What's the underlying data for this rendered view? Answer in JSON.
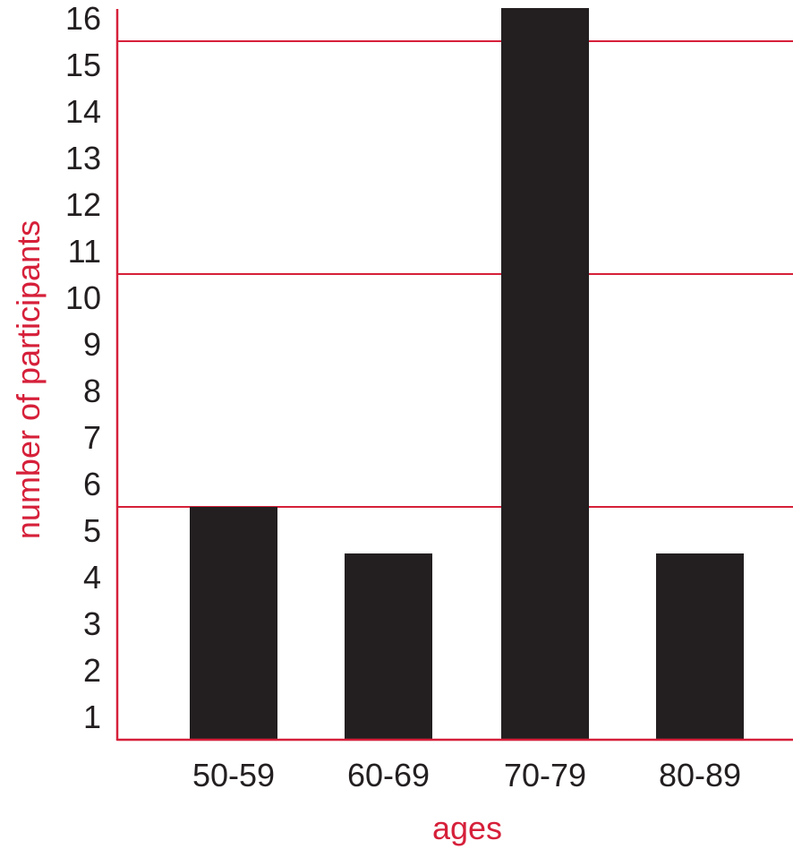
{
  "chart_data": {
    "type": "bar",
    "categories": [
      "50-59",
      "60-69",
      "70-79",
      "80-89"
    ],
    "values": [
      5,
      4,
      16,
      4
    ],
    "xlabel": "ages",
    "ylabel": "number of participants",
    "yticks": [
      1,
      2,
      3,
      4,
      5,
      6,
      7,
      8,
      9,
      10,
      11,
      12,
      13,
      14,
      15,
      16
    ],
    "ylim": [
      0,
      16
    ],
    "gridlines": [
      5,
      10,
      15
    ],
    "grid": true,
    "legend": "none"
  },
  "colors": {
    "bar": "#231f20",
    "axis": "#d6203a",
    "grid": "#d6203a",
    "label": "#d6203a",
    "tick_text": "#231f20"
  }
}
